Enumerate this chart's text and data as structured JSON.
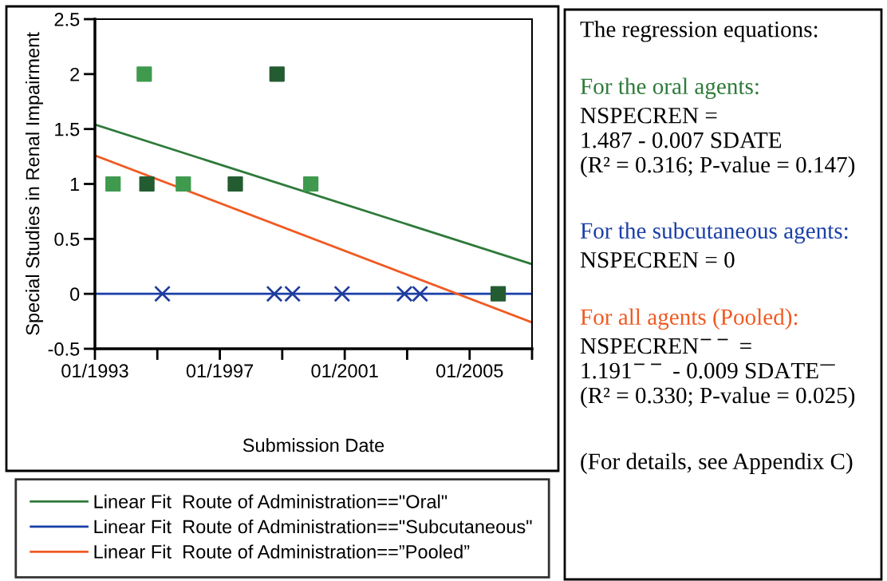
{
  "chart_data": {
    "type": "scatter",
    "xlabel": "Submission Date",
    "ylabel": "Special Studies in Renal Impairment",
    "xlim": [
      "1993-01",
      "2007-01"
    ],
    "ylim": [
      -0.5,
      2.5
    ],
    "xticks": [
      {
        "value": "1993-01",
        "label": "01/1993"
      },
      {
        "value": "1995-01",
        "label": null
      },
      {
        "value": "1997-01",
        "label": "01/1997"
      },
      {
        "value": "1999-01",
        "label": null
      },
      {
        "value": "2001-01",
        "label": "01/2001"
      },
      {
        "value": "2003-01",
        "label": null
      },
      {
        "value": "2005-01",
        "label": "01/2005"
      },
      {
        "value": "2007-01",
        "label": null
      }
    ],
    "yticks": [
      -0.5,
      0,
      0.5,
      1,
      1.5,
      2,
      2.5
    ],
    "grid": false,
    "legend": "bottom",
    "series": [
      {
        "marker": "square",
        "color": "#3f9a4e",
        "x": [
          "1993-08",
          "1994-08",
          "1995-11",
          "1999-12"
        ],
        "values": [
          1,
          2,
          1,
          1
        ]
      },
      {
        "marker": "square",
        "color": "#245c32",
        "x": [
          "1994-09",
          "1997-07",
          "1998-11",
          "2005-12"
        ],
        "values": [
          1,
          1,
          2,
          0
        ]
      },
      {
        "marker": "cross",
        "color": "#1f3c9c",
        "x": [
          "1995-03",
          "1998-10",
          "1999-05",
          "2000-12",
          "2002-12",
          "2003-06"
        ],
        "values": [
          0,
          0,
          0,
          0,
          0,
          0
        ]
      },
      {
        "type": "line",
        "name": "Linear Fit  Route of Administration==\"Oral\"",
        "color": "#2e7a3a",
        "x": [
          "1993-01",
          "2007-01"
        ],
        "values": [
          1.54,
          0.27
        ]
      },
      {
        "type": "line",
        "name": "Linear Fit  Route of Administration==\"Subcutaneous\"",
        "color": "#1a3fa8",
        "x": [
          "1993-01",
          "2007-01"
        ],
        "values": [
          0,
          0
        ]
      },
      {
        "type": "line",
        "name": "Linear Fit  Route of Administration==”Pooled”",
        "color": "#f05a22",
        "x": [
          "1993-01",
          "2007-01"
        ],
        "values": [
          1.26,
          -0.26
        ]
      }
    ],
    "annotations": [
      "The regression equations:",
      "For the oral agents:",
      "NSPECREN =\n1.487 - 0.007 SDATE\n(R² = 0.316; P-value = 0.147)",
      "For the subcutaneous agents:",
      "NSPECREN = 0",
      "For all agents (Pooled):",
      "NSPECREN$^{−−}$ =\n1.191$^{−−}$ - 0.009 SDATE$^{—}$\n(R² = 0.330; P-value = 0.025)",
      "(For details, see Appendix C)"
    ]
  }
}
